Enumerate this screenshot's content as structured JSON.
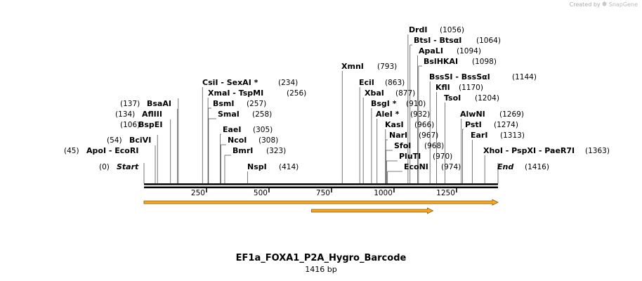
{
  "credit": {
    "created_by": "Created by",
    "brand": "SnapGene"
  },
  "map": {
    "name": "EF1a_FOXA1_P2A_Hygro_Barcode",
    "size_label": "1416 bp",
    "length": 1416,
    "ticks": [
      {
        "pos": 250,
        "label": "250"
      },
      {
        "pos": 500,
        "label": "500"
      },
      {
        "pos": 750,
        "label": "750"
      },
      {
        "pos": 1000,
        "label": "1000"
      },
      {
        "pos": 1250,
        "label": "1250"
      }
    ],
    "start": {
      "name": "Start",
      "pos": 0,
      "pos_label": "(0)"
    },
    "end": {
      "name": "End",
      "pos": 1416,
      "pos_label": "(1416)"
    },
    "left_sites": [
      {
        "name": "BsaAI",
        "pos": 137,
        "pos_label": "(137)"
      },
      {
        "name": "AflIII",
        "pos": 134,
        "pos_label": "(134)"
      },
      {
        "name": "BspEI",
        "pos": 106,
        "pos_label": "(106)"
      },
      {
        "name": "BciVI",
        "pos": 54,
        "pos_label": "(54)"
      },
      {
        "name": "ApoI  -  EcoRI",
        "pos": 45,
        "pos_label": "(45)"
      }
    ],
    "right_sites": [
      {
        "name": "DrdI",
        "pos": 1056,
        "pos_label": "(1056)"
      },
      {
        "name": "BtsI  -  BtsαI",
        "pos": 1064,
        "pos_label": "(1064)"
      },
      {
        "name": "ApaLI",
        "pos": 1094,
        "pos_label": "(1094)"
      },
      {
        "name": "BslHKAI",
        "pos": 1098,
        "pos_label": "(1098)"
      },
      {
        "name": "XmnI",
        "pos": 793,
        "pos_label": "(793)"
      },
      {
        "name": "BssSI  -  BssSαI",
        "pos": 1144,
        "pos_label": "(1144)"
      },
      {
        "name": "CsiI  -  SexAI *",
        "pos": 234,
        "pos_label": "(234)"
      },
      {
        "name": "EciI",
        "pos": 863,
        "pos_label": "(863)"
      },
      {
        "name": "KflI",
        "pos": 1170,
        "pos_label": "(1170)"
      },
      {
        "name": "XmaI  -  TspMI",
        "pos": 256,
        "pos_label": "(256)"
      },
      {
        "name": "XbaI",
        "pos": 877,
        "pos_label": "(877)"
      },
      {
        "name": "TsoI",
        "pos": 1204,
        "pos_label": "(1204)"
      },
      {
        "name": "BsmI",
        "pos": 257,
        "pos_label": "(257)"
      },
      {
        "name": "BsgI *",
        "pos": 910,
        "pos_label": "(910)"
      },
      {
        "name": "SmaI",
        "pos": 258,
        "pos_label": "(258)"
      },
      {
        "name": "AleI *",
        "pos": 932,
        "pos_label": "(932)"
      },
      {
        "name": "AlwNI",
        "pos": 1269,
        "pos_label": "(1269)"
      },
      {
        "name": "KasI",
        "pos": 966,
        "pos_label": "(966)"
      },
      {
        "name": "PstI",
        "pos": 1274,
        "pos_label": "(1274)"
      },
      {
        "name": "EaeI",
        "pos": 305,
        "pos_label": "(305)"
      },
      {
        "name": "NarI",
        "pos": 967,
        "pos_label": "(967)"
      },
      {
        "name": "EarI",
        "pos": 1313,
        "pos_label": "(1313)"
      },
      {
        "name": "NcoI",
        "pos": 308,
        "pos_label": "(308)"
      },
      {
        "name": "SfoI",
        "pos": 968,
        "pos_label": "(968)"
      },
      {
        "name": "BmrI",
        "pos": 323,
        "pos_label": "(323)"
      },
      {
        "name": "PluTI",
        "pos": 970,
        "pos_label": "(970)"
      },
      {
        "name": "XhoI  -  PspXI  -  PaeR7I",
        "pos": 1363,
        "pos_label": "(1363)"
      },
      {
        "name": "NspI",
        "pos": 414,
        "pos_label": "(414)"
      },
      {
        "name": "EcoNI",
        "pos": 974,
        "pos_label": "(974)"
      }
    ],
    "features": [
      {
        "name": "feature-full",
        "start": 0,
        "end": 1416,
        "color": "#f5a623",
        "outline": "#8b5a00"
      },
      {
        "name": "feature-orf",
        "start": 670,
        "end": 1156,
        "color": "#f5a623",
        "outline": "#8b5a00"
      }
    ]
  }
}
